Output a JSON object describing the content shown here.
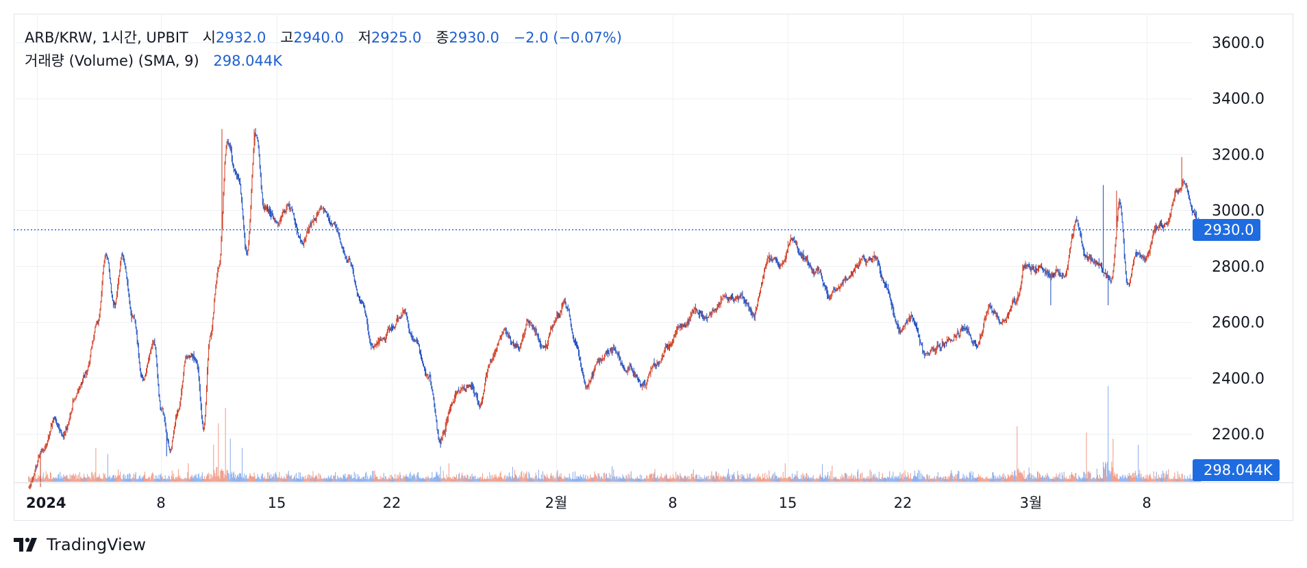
{
  "legend": {
    "symbol": "ARB/KRW, 1시간, UPBIT",
    "open_label": "시",
    "open": "2932.0",
    "high_label": "고",
    "high": "2940.0",
    "low_label": "저",
    "low": "2925.0",
    "close_label": "종",
    "close": "2930.0",
    "change": "−2.0 (−0.07%)",
    "volume_label": "거래량 (Volume) (SMA, 9)",
    "volume": "298.044K"
  },
  "price_badge": "2930.0",
  "volume_badge": "298.044K",
  "brand": "TradingView",
  "colors": {
    "up": "#d2452c",
    "down": "#2756c4",
    "up_volume": "#f0a08e",
    "down_volume": "#8fb0ec",
    "accent": "#1e6ce0",
    "grid": "#eef0f3"
  },
  "chart_data": {
    "type": "candlestick",
    "title": "ARB/KRW, 1시간, UPBIT",
    "xlabel": "",
    "ylabel": "",
    "ylim": [
      2000,
      3720
    ],
    "y_ticks": [
      "3600.0",
      "3400.0",
      "3200.0",
      "3000.0",
      "2800.0",
      "2600.0",
      "2400.0",
      "2200.0"
    ],
    "x_ticks": [
      "2024",
      "8",
      "15",
      "22",
      "2월",
      "8",
      "15",
      "22",
      "3월",
      "8"
    ],
    "x_tick_days": [
      0,
      6,
      13,
      20,
      30,
      37,
      44,
      51,
      59,
      66
    ],
    "x_range_days": [
      -1.1,
      69.5
    ],
    "last_price": 2930.0,
    "price_path": [
      [
        -0.5,
        2010
      ],
      [
        0.3,
        2130
      ],
      [
        1.0,
        2240
      ],
      [
        1.7,
        2200
      ],
      [
        2.3,
        2330
      ],
      [
        2.9,
        2420
      ],
      [
        3.6,
        2600
      ],
      [
        4.1,
        2850
      ],
      [
        4.6,
        2650
      ],
      [
        5.1,
        2840
      ],
      [
        5.7,
        2620
      ],
      [
        6.3,
        2380
      ],
      [
        6.9,
        2540
      ],
      [
        7.4,
        2290
      ],
      [
        7.9,
        2130
      ],
      [
        8.4,
        2300
      ],
      [
        8.9,
        2480
      ],
      [
        9.5,
        2460
      ],
      [
        9.9,
        2220
      ],
      [
        10.3,
        2560
      ],
      [
        10.8,
        2800
      ],
      [
        11.3,
        3240
      ],
      [
        12.0,
        3110
      ],
      [
        12.5,
        2860
      ],
      [
        13.0,
        3280
      ],
      [
        13.5,
        3010
      ],
      [
        14.2,
        2970
      ],
      [
        15.0,
        3010
      ],
      [
        15.7,
        2890
      ],
      [
        16.3,
        2960
      ],
      [
        17.0,
        3010
      ],
      [
        17.6,
        2950
      ],
      [
        18.5,
        2820
      ],
      [
        19.3,
        2680
      ],
      [
        20.0,
        2510
      ],
      [
        21.0,
        2580
      ],
      [
        21.8,
        2630
      ],
      [
        22.5,
        2520
      ],
      [
        23.3,
        2390
      ],
      [
        24.0,
        2190
      ],
      [
        24.8,
        2320
      ],
      [
        25.7,
        2380
      ],
      [
        26.3,
        2300
      ],
      [
        27.0,
        2450
      ],
      [
        27.8,
        2550
      ],
      [
        28.6,
        2500
      ],
      [
        29.3,
        2600
      ],
      [
        30.1,
        2500
      ],
      [
        31.0,
        2620
      ],
      [
        31.4,
        2680
      ],
      [
        32.0,
        2540
      ],
      [
        32.7,
        2370
      ],
      [
        33.5,
        2470
      ],
      [
        34.3,
        2500
      ],
      [
        35.1,
        2440
      ],
      [
        36.0,
        2380
      ],
      [
        36.9,
        2460
      ],
      [
        37.6,
        2520
      ],
      [
        38.3,
        2580
      ],
      [
        39.2,
        2640
      ],
      [
        40.0,
        2610
      ],
      [
        40.8,
        2700
      ],
      [
        41.7,
        2690
      ],
      [
        42.6,
        2640
      ],
      [
        43.5,
        2810
      ],
      [
        44.2,
        2800
      ],
      [
        44.9,
        2900
      ],
      [
        45.6,
        2840
      ],
      [
        46.4,
        2780
      ],
      [
        47.2,
        2700
      ],
      [
        48.1,
        2750
      ],
      [
        49.0,
        2820
      ],
      [
        49.8,
        2830
      ],
      [
        50.5,
        2730
      ],
      [
        51.3,
        2560
      ],
      [
        52.0,
        2600
      ],
      [
        52.8,
        2490
      ],
      [
        53.6,
        2500
      ],
      [
        54.4,
        2540
      ],
      [
        55.2,
        2580
      ],
      [
        55.9,
        2520
      ],
      [
        56.7,
        2650
      ],
      [
        57.5,
        2600
      ],
      [
        58.2,
        2660
      ],
      [
        58.8,
        2800
      ],
      [
        59.5,
        2780
      ],
      [
        60.3,
        2760
      ],
      [
        61.1,
        2770
      ],
      [
        61.8,
        2950
      ],
      [
        62.4,
        2840
      ],
      [
        63.2,
        2790
      ],
      [
        63.9,
        2750
      ],
      [
        64.4,
        3030
      ],
      [
        64.9,
        2730
      ],
      [
        65.4,
        2870
      ],
      [
        66.0,
        2840
      ],
      [
        66.6,
        2950
      ],
      [
        67.2,
        2960
      ],
      [
        67.8,
        3080
      ],
      [
        68.3,
        3100
      ],
      [
        68.8,
        2980
      ],
      [
        69.2,
        2930
      ]
    ],
    "wick_extremes": [
      [
        11.0,
        3290
      ],
      [
        12.9,
        3290
      ],
      [
        68.1,
        3190
      ],
      [
        64.2,
        3070
      ],
      [
        63.4,
        3090
      ],
      [
        24.0,
        2150
      ],
      [
        7.7,
        2120
      ],
      [
        0.2,
        2010
      ],
      [
        60.3,
        2660
      ],
      [
        63.7,
        2660
      ]
    ],
    "volume_spikes": [
      [
        3.5,
        0.55
      ],
      [
        10.5,
        0.6
      ],
      [
        10.8,
        0.95
      ],
      [
        11.2,
        1.2
      ],
      [
        11.5,
        0.7
      ],
      [
        12.2,
        0.55
      ],
      [
        4.2,
        0.45
      ],
      [
        9.0,
        0.3
      ],
      [
        24.5,
        0.3
      ],
      [
        44.5,
        0.3
      ],
      [
        58.3,
        0.9
      ],
      [
        62.4,
        0.8
      ],
      [
        63.7,
        1.6
      ],
      [
        64.0,
        0.7
      ],
      [
        65.5,
        0.6
      ]
    ]
  }
}
